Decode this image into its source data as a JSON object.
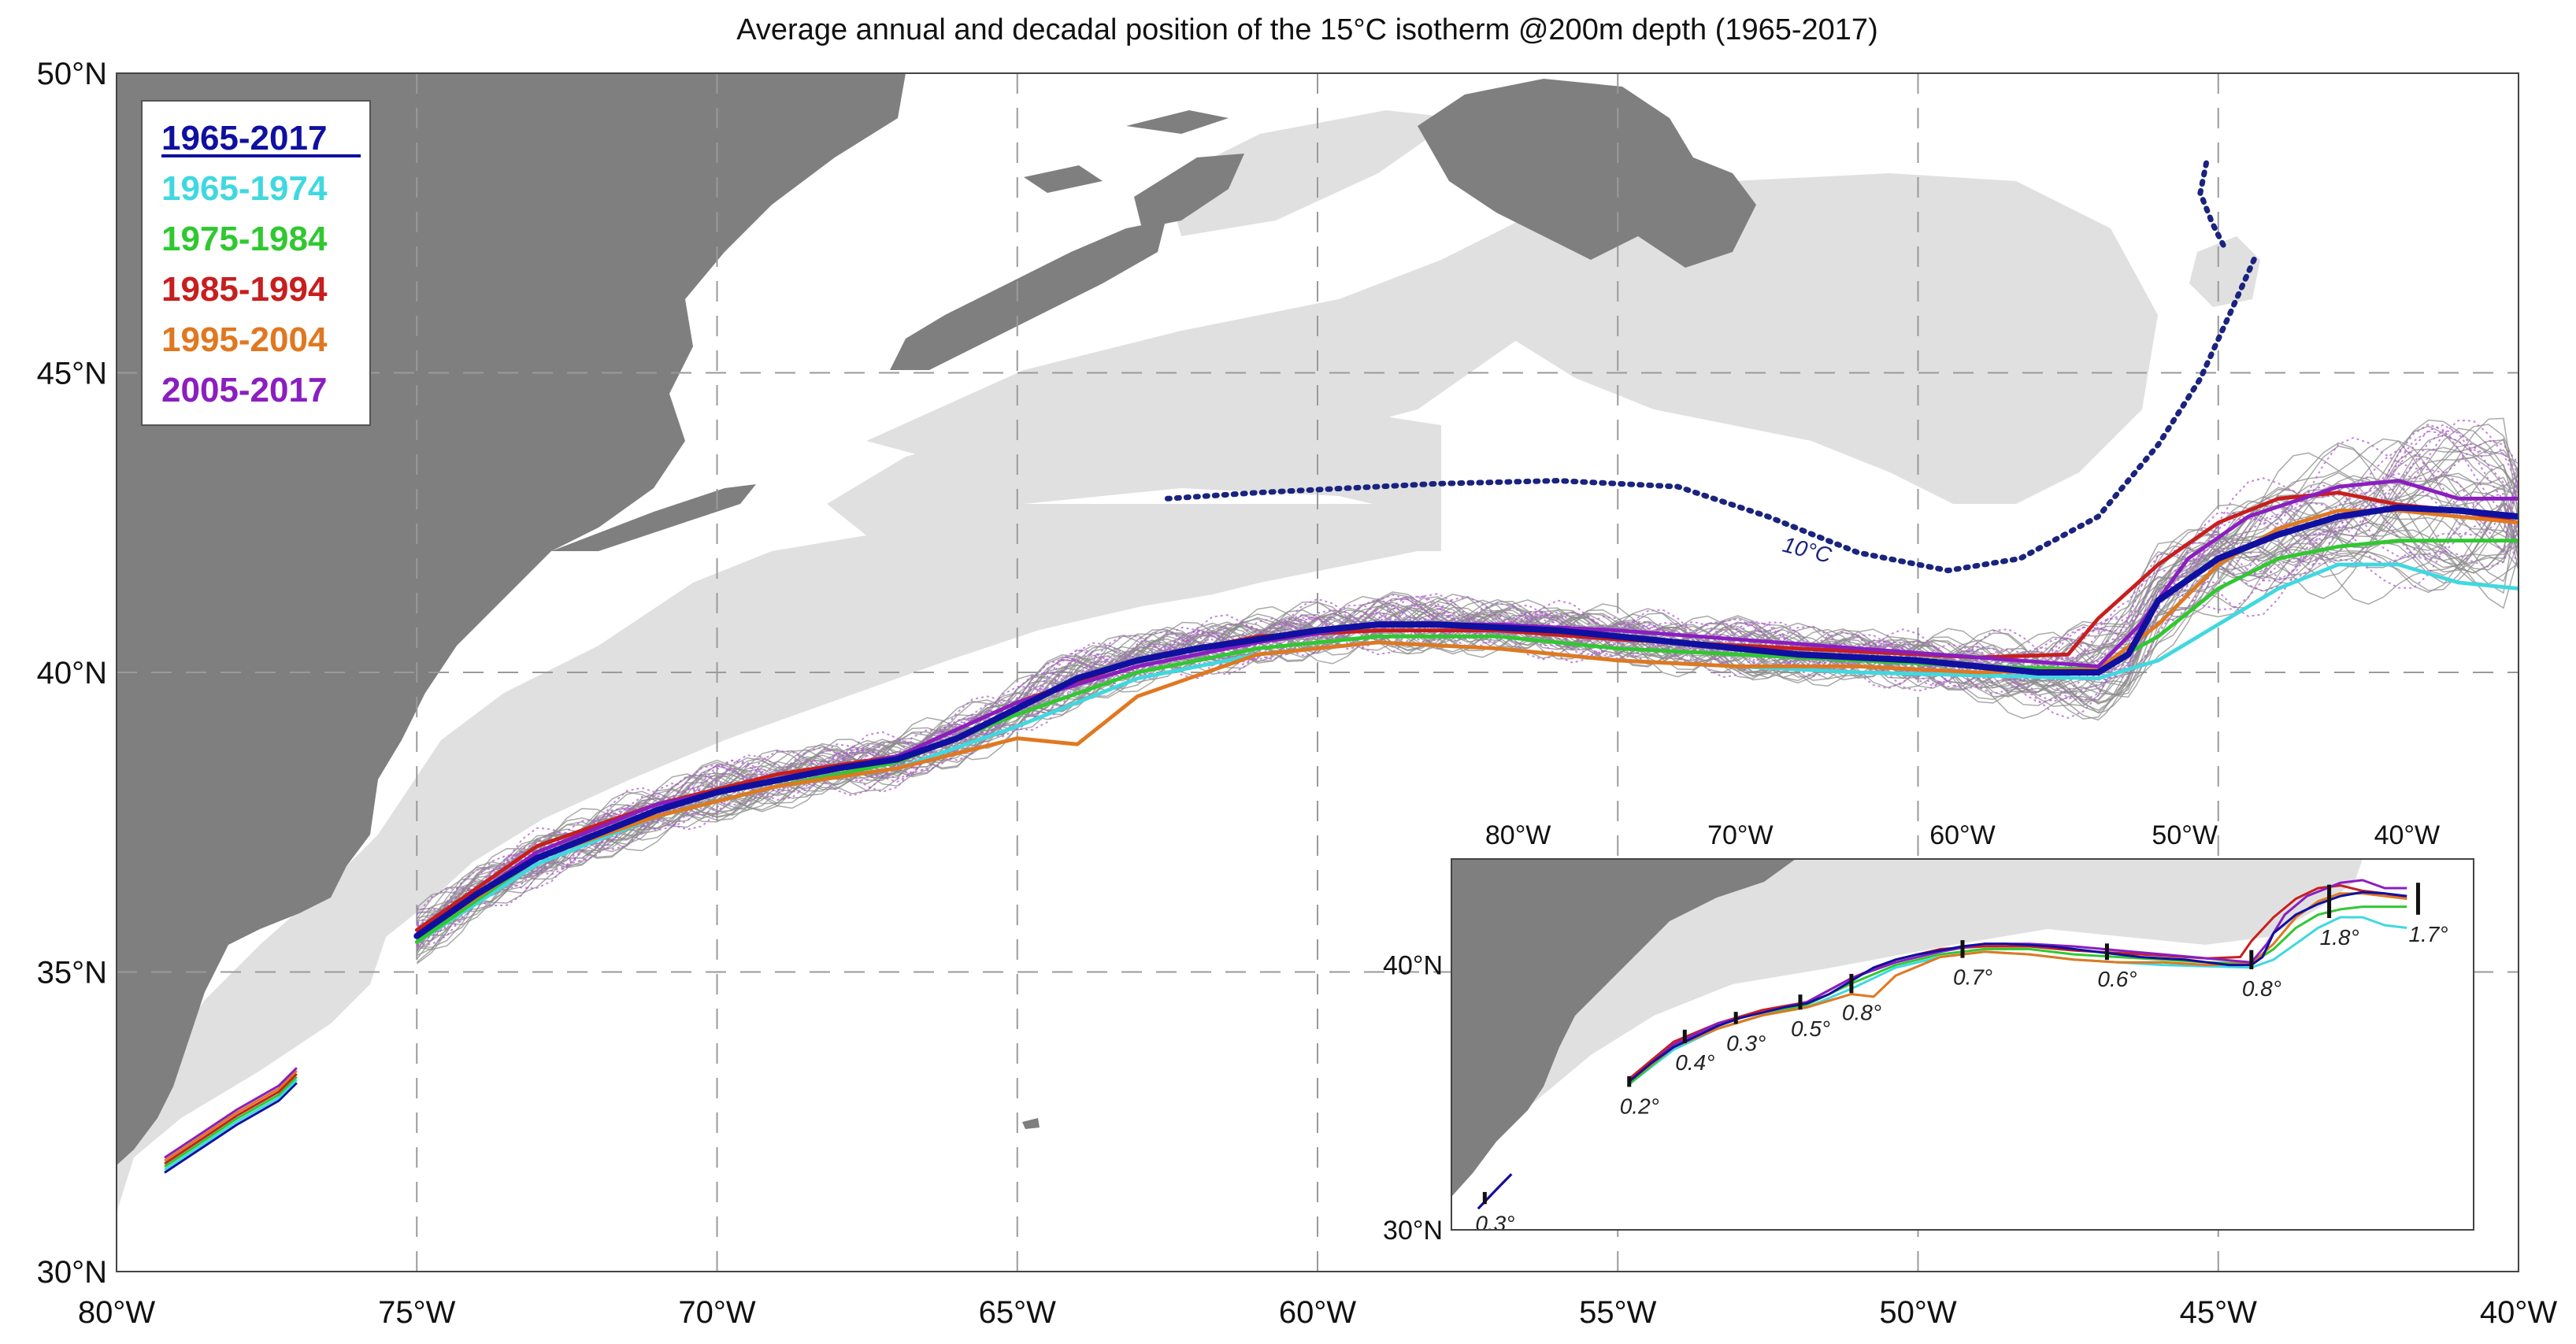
{
  "title": "Average annual and decadal position of the 15°C isotherm @200m depth (1965-2017)",
  "colors": {
    "land": "#7f7f7f",
    "shelf": "#e0e0e0",
    "annual_lines": "#8c8c8c",
    "annual_lines_2005_2017": "#b05cd0",
    "ten_degree_isotherm": "#1a237e"
  },
  "legend": {
    "items": [
      {
        "label": "1965-2017",
        "color": "#1010a0",
        "underline": true
      },
      {
        "label": "1965-1974",
        "color": "#40d8e0"
      },
      {
        "label": "1975-1984",
        "color": "#30c830"
      },
      {
        "label": "1985-1994",
        "color": "#c81e1e"
      },
      {
        "label": "1995-2004",
        "color": "#e07820"
      },
      {
        "label": "2005-2017",
        "color": "#8a1ec0"
      }
    ]
  },
  "annotation_10c": "10°C",
  "chart_data": {
    "type": "line",
    "title": "Average annual and decadal position of the 15°C isotherm @200m depth (1965-2017)",
    "xlim": [
      -80,
      -40
    ],
    "ylim": [
      30,
      50
    ],
    "grid": true,
    "x_ticks": [
      -80,
      -75,
      -70,
      -65,
      -60,
      -55,
      -50,
      -45,
      -40
    ],
    "x_tick_labels": [
      "80°W",
      "75°W",
      "70°W",
      "65°W",
      "60°W",
      "55°W",
      "50°W",
      "45°W",
      "40°W"
    ],
    "y_ticks": [
      30,
      35,
      40,
      45,
      50
    ],
    "y_tick_labels": [
      "30°N",
      "35°N",
      "40°N",
      "45°N",
      "50°N"
    ],
    "series": [
      {
        "name": "1965-2017",
        "color": "#1010a0",
        "width": 5,
        "points": [
          [
            -75,
            35.6
          ],
          [
            -74,
            36.3
          ],
          [
            -73,
            36.9
          ],
          [
            -72,
            37.3
          ],
          [
            -71,
            37.7
          ],
          [
            -70,
            38.0
          ],
          [
            -69,
            38.2
          ],
          [
            -68,
            38.4
          ],
          [
            -67,
            38.55
          ],
          [
            -66,
            38.9
          ],
          [
            -65,
            39.4
          ],
          [
            -64,
            39.9
          ],
          [
            -63,
            40.2
          ],
          [
            -62,
            40.4
          ],
          [
            -61,
            40.55
          ],
          [
            -60,
            40.7
          ],
          [
            -59,
            40.8
          ],
          [
            -58,
            40.8
          ],
          [
            -57,
            40.75
          ],
          [
            -56,
            40.7
          ],
          [
            -55,
            40.6
          ],
          [
            -54,
            40.5
          ],
          [
            -53,
            40.4
          ],
          [
            -52,
            40.3
          ],
          [
            -51,
            40.25
          ],
          [
            -50,
            40.2
          ],
          [
            -49,
            40.1
          ],
          [
            -48,
            40.0
          ],
          [
            -47,
            40.0
          ],
          [
            -46.5,
            40.3
          ],
          [
            -46,
            41.2
          ],
          [
            -45,
            41.9
          ],
          [
            -44,
            42.3
          ],
          [
            -43,
            42.6
          ],
          [
            -42,
            42.75
          ],
          [
            -41,
            42.7
          ],
          [
            -40,
            42.6
          ]
        ]
      },
      {
        "name": "1965-1974",
        "color": "#40d8e0",
        "width": 3,
        "points": [
          [
            -75,
            35.5
          ],
          [
            -73,
            36.8
          ],
          [
            -71,
            37.6
          ],
          [
            -69,
            38.1
          ],
          [
            -67,
            38.4
          ],
          [
            -65,
            39.1
          ],
          [
            -63,
            39.9
          ],
          [
            -61,
            40.3
          ],
          [
            -59,
            40.5
          ],
          [
            -57,
            40.4
          ],
          [
            -55,
            40.2
          ],
          [
            -53,
            40.1
          ],
          [
            -51,
            40.0
          ],
          [
            -49,
            39.95
          ],
          [
            -47,
            39.9
          ],
          [
            -46,
            40.2
          ],
          [
            -45,
            40.8
          ],
          [
            -44,
            41.4
          ],
          [
            -43,
            41.8
          ],
          [
            -42,
            41.8
          ],
          [
            -41,
            41.5
          ],
          [
            -40,
            41.4
          ]
        ]
      },
      {
        "name": "1975-1984",
        "color": "#30c830",
        "width": 3,
        "points": [
          [
            -75,
            35.5
          ],
          [
            -73,
            36.9
          ],
          [
            -71,
            37.6
          ],
          [
            -69,
            38.1
          ],
          [
            -67,
            38.5
          ],
          [
            -65,
            39.3
          ],
          [
            -63,
            40.0
          ],
          [
            -61,
            40.4
          ],
          [
            -59,
            40.6
          ],
          [
            -57,
            40.6
          ],
          [
            -55,
            40.4
          ],
          [
            -53,
            40.3
          ],
          [
            -51,
            40.2
          ],
          [
            -49,
            40.1
          ],
          [
            -47,
            40.05
          ],
          [
            -46,
            40.6
          ],
          [
            -45,
            41.4
          ],
          [
            -44,
            41.9
          ],
          [
            -43,
            42.1
          ],
          [
            -42,
            42.2
          ],
          [
            -41,
            42.2
          ],
          [
            -40,
            42.2
          ]
        ]
      },
      {
        "name": "1985-1994",
        "color": "#c81e1e",
        "width": 3,
        "points": [
          [
            -75,
            35.7
          ],
          [
            -73,
            37.1
          ],
          [
            -71,
            37.8
          ],
          [
            -69,
            38.3
          ],
          [
            -67,
            38.6
          ],
          [
            -65,
            39.5
          ],
          [
            -63,
            40.2
          ],
          [
            -61,
            40.6
          ],
          [
            -59,
            40.7
          ],
          [
            -57,
            40.7
          ],
          [
            -55,
            40.55
          ],
          [
            -53,
            40.45
          ],
          [
            -51,
            40.35
          ],
          [
            -49,
            40.25
          ],
          [
            -47.5,
            40.3
          ],
          [
            -47,
            40.9
          ],
          [
            -46,
            41.8
          ],
          [
            -45,
            42.5
          ],
          [
            -44,
            42.9
          ],
          [
            -43,
            43.0
          ],
          [
            -42,
            42.8
          ],
          [
            -41,
            42.7
          ],
          [
            -40,
            42.5
          ]
        ]
      },
      {
        "name": "1995-2004",
        "color": "#e07820",
        "width": 3,
        "points": [
          [
            -75,
            35.6
          ],
          [
            -73,
            36.9
          ],
          [
            -71,
            37.6
          ],
          [
            -69,
            38.1
          ],
          [
            -67,
            38.4
          ],
          [
            -65,
            38.9
          ],
          [
            -64,
            38.8
          ],
          [
            -63,
            39.6
          ],
          [
            -61,
            40.3
          ],
          [
            -59,
            40.5
          ],
          [
            -57,
            40.4
          ],
          [
            -55,
            40.2
          ],
          [
            -53,
            40.1
          ],
          [
            -51,
            40.1
          ],
          [
            -49,
            40.0
          ],
          [
            -47,
            40.05
          ],
          [
            -46,
            40.8
          ],
          [
            -45,
            41.8
          ],
          [
            -44,
            42.4
          ],
          [
            -43,
            42.7
          ],
          [
            -42,
            42.7
          ],
          [
            -41,
            42.6
          ],
          [
            -40,
            42.5
          ]
        ]
      },
      {
        "name": "2005-2017",
        "color": "#8a1ec0",
        "width": 3,
        "points": [
          [
            -75,
            35.6
          ],
          [
            -73,
            37.0
          ],
          [
            -71,
            37.8
          ],
          [
            -69,
            38.2
          ],
          [
            -67,
            38.6
          ],
          [
            -65,
            39.5
          ],
          [
            -63,
            40.1
          ],
          [
            -61,
            40.5
          ],
          [
            -59,
            40.8
          ],
          [
            -57,
            40.8
          ],
          [
            -55,
            40.7
          ],
          [
            -53,
            40.55
          ],
          [
            -51,
            40.4
          ],
          [
            -49,
            40.25
          ],
          [
            -47,
            40.1
          ],
          [
            -46.3,
            40.8
          ],
          [
            -45.5,
            41.9
          ],
          [
            -44.5,
            42.6
          ],
          [
            -43,
            43.1
          ],
          [
            -42,
            43.2
          ],
          [
            -41,
            42.9
          ],
          [
            -40,
            42.9
          ]
        ]
      }
    ],
    "ten_degree_isotherm": [
      [
        -62.5,
        42.9
      ],
      [
        -61,
        43.0
      ],
      [
        -60,
        43.05
      ],
      [
        -58,
        43.15
      ],
      [
        -56,
        43.2
      ],
      [
        -54,
        43.1
      ],
      [
        -52.5,
        42.6
      ],
      [
        -51,
        42.0
      ],
      [
        -49.5,
        41.7
      ],
      [
        -48.3,
        41.9
      ],
      [
        -47,
        42.6
      ],
      [
        -46,
        43.8
      ],
      [
        -45.3,
        44.9
      ],
      [
        -44.8,
        46.0
      ],
      [
        -44.4,
        46.9
      ]
    ],
    "ten_degree_isotherm_north": [
      [
        -45.2,
        48.5
      ],
      [
        -45.3,
        48.0
      ],
      [
        -45.1,
        47.5
      ],
      [
        -44.9,
        47.1
      ]
    ],
    "inset": {
      "xlim": [
        -83,
        -37
      ],
      "ylim": [
        30,
        44
      ],
      "x_ticks": [
        -80,
        -70,
        -60,
        -50,
        -40
      ],
      "x_tick_labels": [
        "80°W",
        "70°W",
        "60°W",
        "50°W",
        "40°W"
      ],
      "y_ticks": [
        30,
        40
      ],
      "y_tick_labels": [
        "30°N",
        "40°N"
      ],
      "spread_markers": [
        {
          "lon": -81.5,
          "lat": 31.2,
          "label": "0.3°"
        },
        {
          "lon": -75,
          "lat": 35.6,
          "label": "0.2°"
        },
        {
          "lon": -72.5,
          "lat": 37.3,
          "label": "0.4°"
        },
        {
          "lon": -70.2,
          "lat": 38.0,
          "label": "0.3°"
        },
        {
          "lon": -67.3,
          "lat": 38.6,
          "label": "0.5°"
        },
        {
          "lon": -65,
          "lat": 39.3,
          "label": "0.8°"
        },
        {
          "lon": -60,
          "lat": 40.6,
          "label": "0.7°"
        },
        {
          "lon": -53.5,
          "lat": 40.5,
          "label": "0.6°"
        },
        {
          "lon": -47,
          "lat": 40.2,
          "label": "0.8°"
        },
        {
          "lon": -43.5,
          "lat": 42.4,
          "label": "1.8°"
        },
        {
          "lon": -39.5,
          "lat": 42.5,
          "label": "1.7°"
        }
      ]
    }
  }
}
